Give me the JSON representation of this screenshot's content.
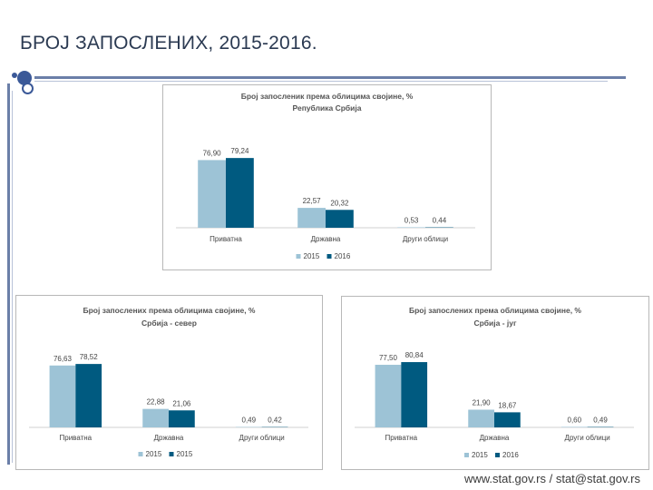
{
  "slide": {
    "title": "БРОЈ ЗАПОСЛЕНИХ, 2015-2016.",
    "footer": "www.stat.gov.rs / stat@stat.gov.rs"
  },
  "colors": {
    "s2015": "#9dc3d6",
    "s2016": "#005a80"
  },
  "chart_data": [
    {
      "type": "bar",
      "title": "Број запосленик према облицима својине, %",
      "subtitle": "Република Србија",
      "categories": [
        "Приватна",
        "Државна",
        "Други облици"
      ],
      "series": [
        {
          "name": "2015",
          "values": [
            76.9,
            22.57,
            0.53
          ],
          "labels": [
            "76,90",
            "22,57",
            "0,53"
          ]
        },
        {
          "name": "2016",
          "values": [
            79.24,
            20.32,
            0.44
          ],
          "labels": [
            "79,24",
            "20,32",
            "0,44"
          ]
        }
      ],
      "ylim": [
        0,
        100
      ],
      "legend": "bottom"
    },
    {
      "type": "bar",
      "title": "Број запослених према облицима својине, %",
      "subtitle": "Србија - север",
      "categories": [
        "Приватна",
        "Државна",
        "Други облици"
      ],
      "series": [
        {
          "name": "2015",
          "values": [
            76.63,
            22.88,
            0.49
          ],
          "labels": [
            "76,63",
            "22,88",
            "0,49"
          ]
        },
        {
          "name": "2015",
          "values": [
            78.52,
            21.06,
            0.42
          ],
          "labels": [
            "78,52",
            "21,06",
            "0,42"
          ]
        }
      ],
      "ylim": [
        0,
        100
      ],
      "legend": "bottom"
    },
    {
      "type": "bar",
      "title": "Број запослених према облицима својине, %",
      "subtitle": "Србија - југ",
      "categories": [
        "Приватна",
        "Државна",
        "Други облици"
      ],
      "series": [
        {
          "name": "2015",
          "values": [
            77.5,
            21.9,
            0.6
          ],
          "labels": [
            "77,50",
            "21,90",
            "0,60"
          ]
        },
        {
          "name": "2016",
          "values": [
            80.84,
            18.67,
            0.49
          ],
          "labels": [
            "80,84",
            "18,67",
            "0,49"
          ]
        }
      ],
      "ylim": [
        0,
        100
      ],
      "legend": "bottom"
    }
  ]
}
